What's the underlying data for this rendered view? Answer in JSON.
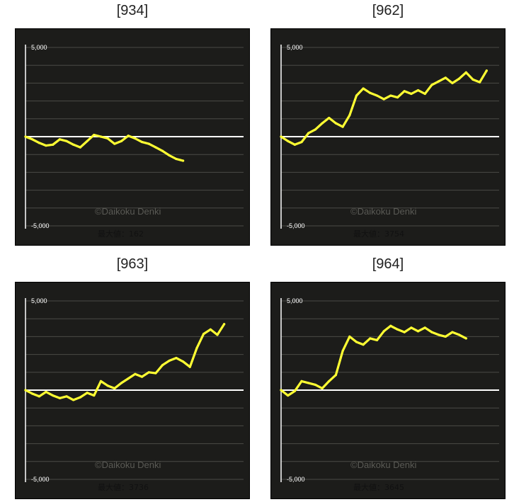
{
  "chart_data": [
    {
      "type": "line",
      "title": "[934]",
      "watermark": "©Daikoku Denki",
      "max_label": "最大値：162",
      "y_tick_labels": [
        "5,000",
        "-5,000"
      ],
      "ylim": [
        -5000,
        5000
      ],
      "color": "#ffff33",
      "series": [
        {
          "values": [
            0,
            -150,
            -350,
            -500,
            -450,
            -150,
            -250,
            -450,
            -600,
            -250,
            100,
            0,
            -100,
            -400,
            -250,
            50,
            -100,
            -300,
            -400,
            -600,
            -800,
            -1050,
            -1250,
            -1350
          ]
        }
      ]
    },
    {
      "type": "line",
      "title": "[962]",
      "watermark": "©Daikoku Denki",
      "max_label": "最大値：3754",
      "y_tick_labels": [
        "5,000",
        "-5,000"
      ],
      "ylim": [
        -5000,
        5000
      ],
      "color": "#ffff33",
      "series": [
        {
          "values": [
            0,
            -250,
            -450,
            -300,
            200,
            400,
            750,
            1050,
            750,
            550,
            1200,
            2300,
            2700,
            2450,
            2300,
            2100,
            2300,
            2200,
            2550,
            2400,
            2600,
            2400,
            2900,
            3100,
            3300,
            3000,
            3250,
            3600,
            3200,
            3050,
            3700
          ]
        }
      ]
    },
    {
      "type": "line",
      "title": "[963]",
      "watermark": "©Daikoku Denki",
      "max_label": "最大値：3736",
      "y_tick_labels": [
        "5,000",
        "-5,000"
      ],
      "ylim": [
        -5000,
        5000
      ],
      "color": "#ffff33",
      "series": [
        {
          "values": [
            0,
            -200,
            -350,
            -100,
            -300,
            -450,
            -350,
            -550,
            -400,
            -150,
            -300,
            500,
            250,
            100,
            400,
            650,
            900,
            750,
            1000,
            950,
            1400,
            1650,
            1800,
            1600,
            1300,
            2350,
            3150,
            3400,
            3100,
            3700
          ]
        }
      ]
    },
    {
      "type": "line",
      "title": "[964]",
      "watermark": "©Daikoku Denki",
      "max_label": "最大値：3645",
      "y_tick_labels": [
        "5,000",
        "-5,000"
      ],
      "ylim": [
        -5000,
        5000
      ],
      "color": "#ffff33",
      "series": [
        {
          "values": [
            0,
            -300,
            -50,
            500,
            400,
            300,
            100,
            500,
            850,
            2200,
            3000,
            2700,
            2550,
            2900,
            2800,
            3300,
            3600,
            3400,
            3250,
            3500,
            3300,
            3500,
            3250,
            3100,
            3000,
            3250,
            3100,
            2900
          ]
        }
      ]
    }
  ]
}
